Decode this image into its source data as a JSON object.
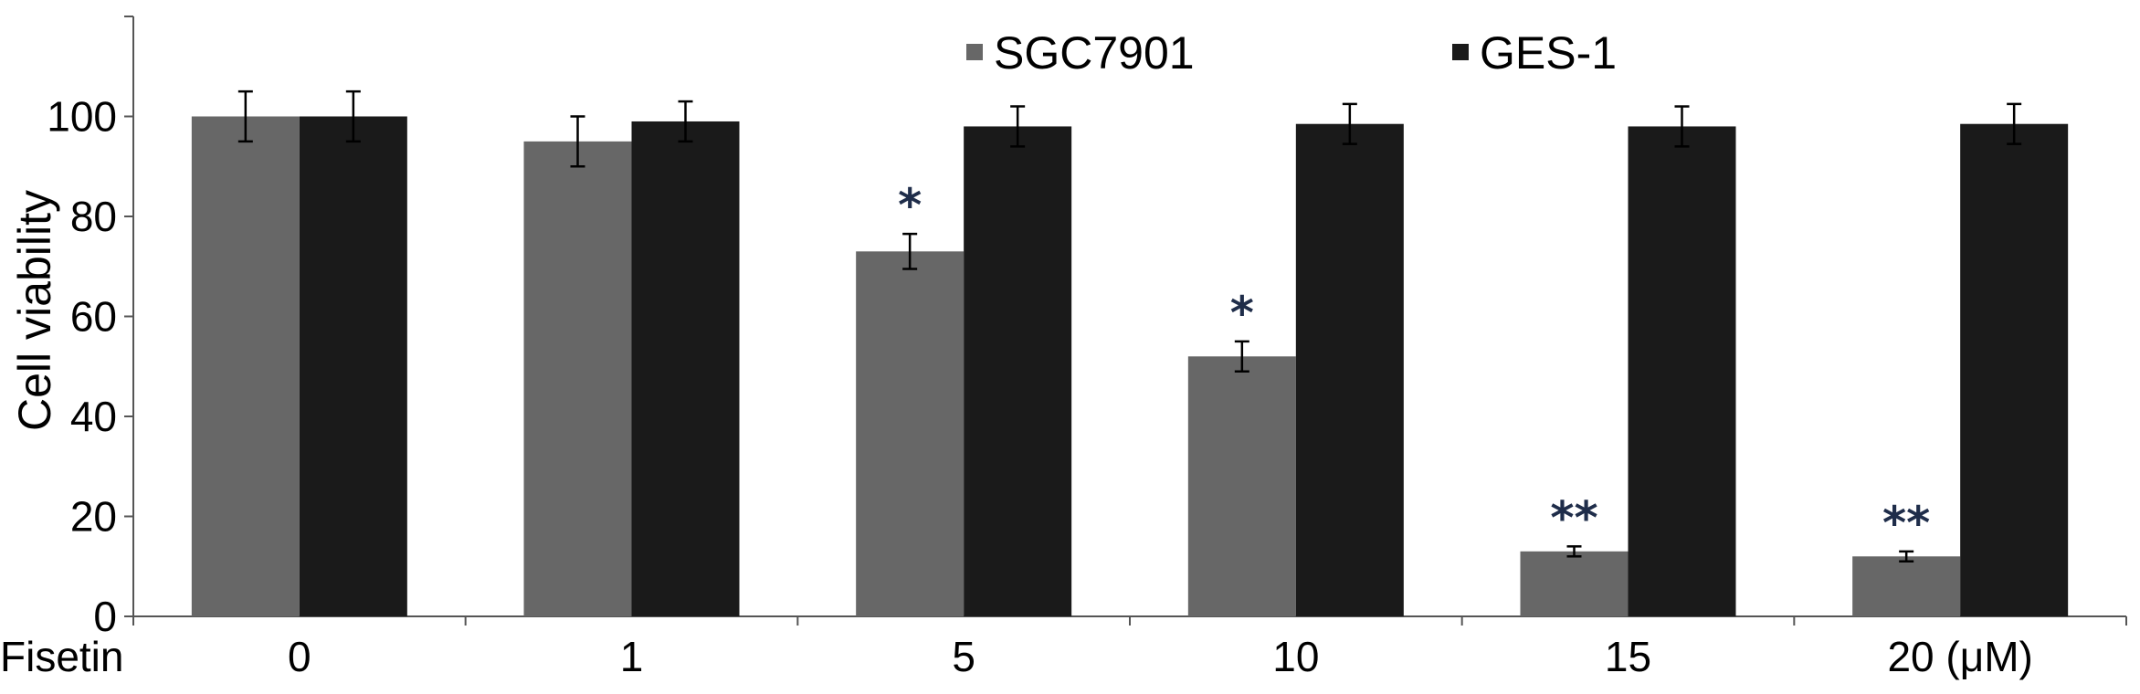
{
  "chart_data": {
    "type": "bar",
    "title": "",
    "ylabel": "Cell viability",
    "xlabel": "",
    "x_prefix_label": "Fisetin",
    "categories": [
      "0",
      "1",
      "5",
      "10",
      "15",
      "20 (μM)"
    ],
    "series": [
      {
        "name": "SGC7901",
        "color": "#676767",
        "values": [
          100,
          95,
          73,
          52,
          13,
          12
        ],
        "errors": [
          5,
          5,
          3.5,
          3,
          1,
          1
        ]
      },
      {
        "name": "GES-1",
        "color": "#1a1a1a",
        "values": [
          100,
          99,
          98,
          98.5,
          98,
          98.5
        ],
        "errors": [
          5,
          4,
          4,
          4,
          4,
          4
        ]
      }
    ],
    "annotations": [
      {
        "category": "5",
        "series": "SGC7901",
        "text": "*"
      },
      {
        "category": "10",
        "series": "SGC7901",
        "text": "*"
      },
      {
        "category": "15",
        "series": "SGC7901",
        "text": "**"
      },
      {
        "category": "20 (μM)",
        "series": "SGC7901",
        "text": "**"
      }
    ],
    "ylim": [
      0,
      120
    ],
    "yticks": [
      0,
      20,
      40,
      60,
      80,
      100
    ],
    "grid": false,
    "legend_position": "top-center"
  }
}
